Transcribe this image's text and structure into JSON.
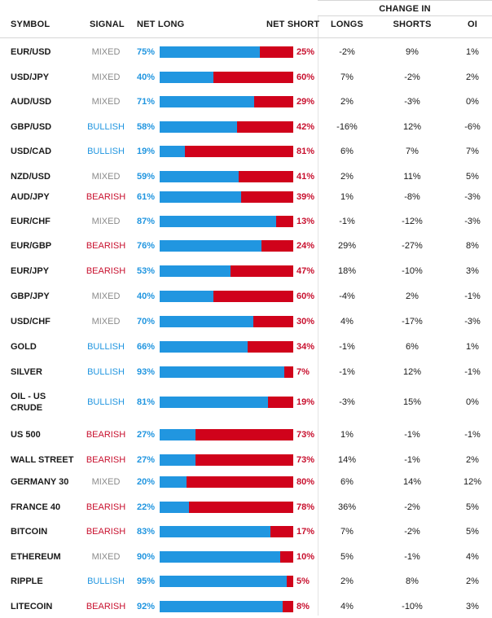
{
  "header": {
    "change_in": "CHANGE IN",
    "symbol": "SYMBOL",
    "signal": "SIGNAL",
    "net_long": "NET LONG",
    "net_short": "NET SHORT",
    "longs": "LONGS",
    "shorts": "SHORTS",
    "oi": "OI"
  },
  "colors": {
    "long": "#2196e0",
    "short": "#d0021b",
    "mixed": "#8a8a8a"
  },
  "rows": [
    {
      "symbol": "EUR/USD",
      "signal": "MIXED",
      "net_long": "75%",
      "net_short": "25%",
      "long_frac": 0.75,
      "longs": "-2%",
      "shorts": "9%",
      "oi": "1%"
    },
    {
      "symbol": "USD/JPY",
      "signal": "MIXED",
      "net_long": "40%",
      "net_short": "60%",
      "long_frac": 0.4,
      "longs": "7%",
      "shorts": "-2%",
      "oi": "2%"
    },
    {
      "symbol": "AUD/USD",
      "signal": "MIXED",
      "net_long": "71%",
      "net_short": "29%",
      "long_frac": 0.71,
      "longs": "2%",
      "shorts": "-3%",
      "oi": "0%"
    },
    {
      "symbol": "GBP/USD",
      "signal": "BULLISH",
      "net_long": "58%",
      "net_short": "42%",
      "long_frac": 0.58,
      "longs": "-16%",
      "shorts": "12%",
      "oi": "-6%"
    },
    {
      "symbol": "USD/CAD",
      "signal": "BULLISH",
      "net_long": "19%",
      "net_short": "81%",
      "long_frac": 0.19,
      "longs": "6%",
      "shorts": "7%",
      "oi": "7%"
    },
    {
      "symbol": "NZD/USD",
      "signal": "MIXED",
      "net_long": "59%",
      "net_short": "41%",
      "long_frac": 0.59,
      "longs": "2%",
      "shorts": "11%",
      "oi": "5%"
    },
    {
      "symbol": "AUD/JPY",
      "signal": "BEARISH",
      "net_long": "61%",
      "net_short": "39%",
      "long_frac": 0.61,
      "longs": "1%",
      "shorts": "-8%",
      "oi": "-3%"
    },
    {
      "symbol": "EUR/CHF",
      "signal": "MIXED",
      "net_long": "87%",
      "net_short": "13%",
      "long_frac": 0.87,
      "longs": "-1%",
      "shorts": "-12%",
      "oi": "-3%"
    },
    {
      "symbol": "EUR/GBP",
      "signal": "BEARISH",
      "net_long": "76%",
      "net_short": "24%",
      "long_frac": 0.76,
      "longs": "29%",
      "shorts": "-27%",
      "oi": "8%"
    },
    {
      "symbol": "EUR/JPY",
      "signal": "BEARISH",
      "net_long": "53%",
      "net_short": "47%",
      "long_frac": 0.53,
      "longs": "18%",
      "shorts": "-10%",
      "oi": "3%"
    },
    {
      "symbol": "GBP/JPY",
      "signal": "MIXED",
      "net_long": "40%",
      "net_short": "60%",
      "long_frac": 0.4,
      "longs": "-4%",
      "shorts": "2%",
      "oi": "-1%"
    },
    {
      "symbol": "USD/CHF",
      "signal": "MIXED",
      "net_long": "70%",
      "net_short": "30%",
      "long_frac": 0.7,
      "longs": "4%",
      "shorts": "-17%",
      "oi": "-3%"
    },
    {
      "symbol": "GOLD",
      "signal": "BULLISH",
      "net_long": "66%",
      "net_short": "34%",
      "long_frac": 0.66,
      "longs": "-1%",
      "shorts": "6%",
      "oi": "1%"
    },
    {
      "symbol": "SILVER",
      "signal": "BULLISH",
      "net_long": "93%",
      "net_short": "7%",
      "long_frac": 0.93,
      "longs": "-1%",
      "shorts": "12%",
      "oi": "-1%"
    },
    {
      "symbol": "OIL - US CRUDE",
      "signal": "BULLISH",
      "net_long": "81%",
      "net_short": "19%",
      "long_frac": 0.81,
      "longs": "-3%",
      "shorts": "15%",
      "oi": "0%"
    },
    {
      "symbol": "US 500",
      "signal": "BEARISH",
      "net_long": "27%",
      "net_short": "73%",
      "long_frac": 0.27,
      "longs": "1%",
      "shorts": "-1%",
      "oi": "-1%"
    },
    {
      "symbol": "WALL STREET",
      "signal": "BEARISH",
      "net_long": "27%",
      "net_short": "73%",
      "long_frac": 0.27,
      "longs": "14%",
      "shorts": "-1%",
      "oi": "2%"
    },
    {
      "symbol": "GERMANY 30",
      "signal": "MIXED",
      "net_long": "20%",
      "net_short": "80%",
      "long_frac": 0.2,
      "longs": "6%",
      "shorts": "14%",
      "oi": "12%"
    },
    {
      "symbol": "FRANCE 40",
      "signal": "BEARISH",
      "net_long": "22%",
      "net_short": "78%",
      "long_frac": 0.22,
      "longs": "36%",
      "shorts": "-2%",
      "oi": "5%"
    },
    {
      "symbol": "BITCOIN",
      "signal": "BEARISH",
      "net_long": "83%",
      "net_short": "17%",
      "long_frac": 0.83,
      "longs": "7%",
      "shorts": "-2%",
      "oi": "5%"
    },
    {
      "symbol": "ETHEREUM",
      "signal": "MIXED",
      "net_long": "90%",
      "net_short": "10%",
      "long_frac": 0.9,
      "longs": "5%",
      "shorts": "-1%",
      "oi": "4%"
    },
    {
      "symbol": "RIPPLE",
      "signal": "BULLISH",
      "net_long": "95%",
      "net_short": "5%",
      "long_frac": 0.95,
      "longs": "2%",
      "shorts": "8%",
      "oi": "2%"
    },
    {
      "symbol": "LITECOIN",
      "signal": "BEARISH",
      "net_long": "92%",
      "net_short": "8%",
      "long_frac": 0.92,
      "longs": "4%",
      "shorts": "-10%",
      "oi": "3%"
    }
  ]
}
